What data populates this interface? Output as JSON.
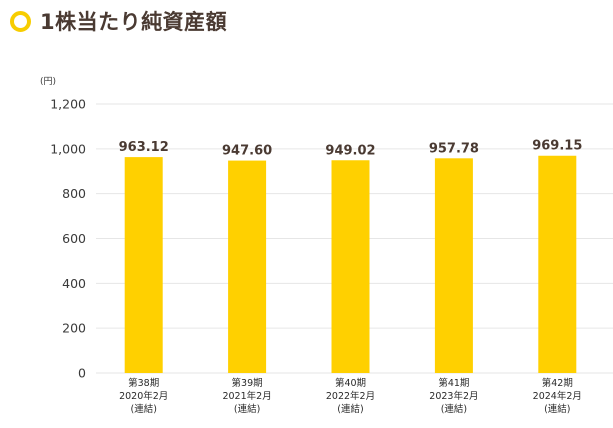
{
  "title": "1株当たり純資産額",
  "colors": {
    "accent": "#f7cd00",
    "bar": "#ffd000",
    "title_text": "#4a3a32",
    "grid": "#e6e6e6"
  },
  "chart_data": {
    "type": "bar",
    "title": "1株当たり純資産額",
    "ylabel": "(円)",
    "xlabel": "",
    "ylim": [
      0,
      1200
    ],
    "yticks": [
      0,
      200,
      400,
      600,
      800,
      1000,
      1200
    ],
    "ytick_labels": [
      "0",
      "200",
      "400",
      "600",
      "800",
      "1,000",
      "1,200"
    ],
    "grid": true,
    "categories": [
      [
        "第38期",
        "2020年2月",
        "(連結)"
      ],
      [
        "第39期",
        "2021年2月",
        "(連結)"
      ],
      [
        "第40期",
        "2022年2月",
        "(連結)"
      ],
      [
        "第41期",
        "2023年2月",
        "(連結)"
      ],
      [
        "第42期",
        "2024年2月",
        "(連結)"
      ]
    ],
    "values": [
      963.12,
      947.6,
      949.02,
      957.78,
      969.15
    ],
    "data_labels": [
      "963.12",
      "947.60",
      "949.02",
      "957.78",
      "969.15"
    ]
  }
}
